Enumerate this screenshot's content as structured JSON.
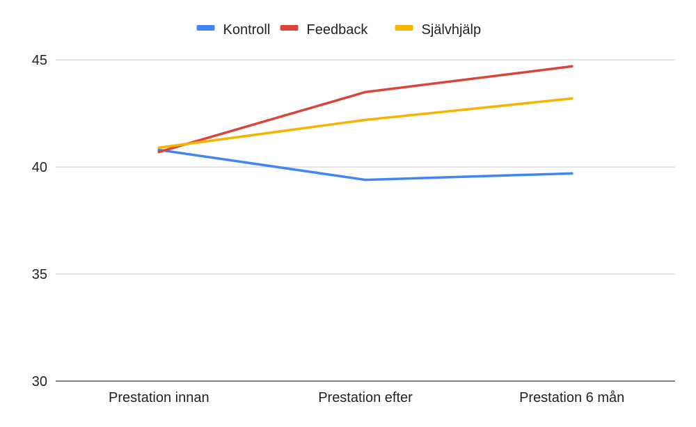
{
  "chart_data": {
    "type": "line",
    "categories": [
      "Prestation innan",
      "Prestation efter",
      "Prestation 6 mån"
    ],
    "series": [
      {
        "name": "Kontroll",
        "color": "#4285f4",
        "values": [
          40.8,
          39.4,
          39.7
        ]
      },
      {
        "name": "Feedback",
        "color": "#db4437",
        "values": [
          40.7,
          43.5,
          44.7
        ]
      },
      {
        "name": "Självhjälp",
        "color": "#f4b400",
        "values": [
          40.9,
          42.2,
          43.2
        ]
      }
    ],
    "yticks": [
      "30",
      "35",
      "40",
      "45"
    ],
    "ylim": [
      30,
      46.5
    ],
    "grid": true,
    "legend_position": "top-center"
  }
}
